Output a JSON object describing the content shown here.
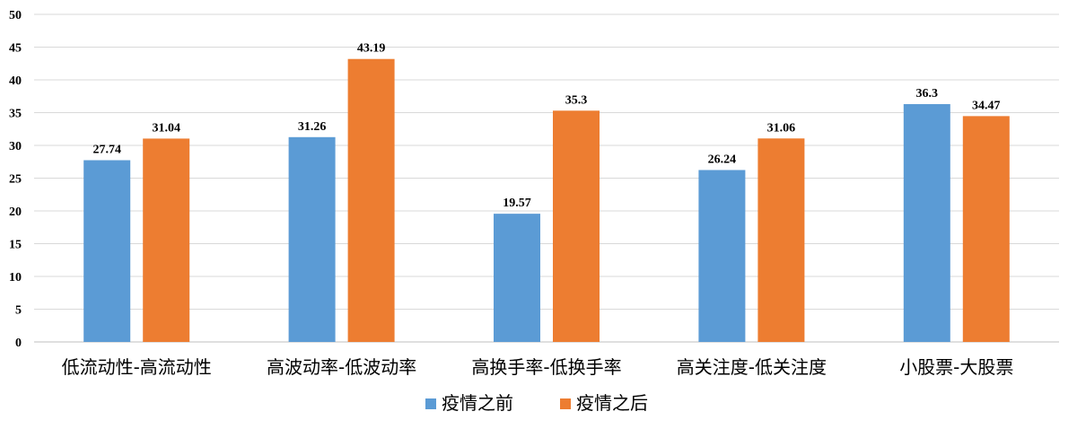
{
  "chart_data": {
    "type": "bar",
    "categories": [
      "低流动性-高流动性",
      "高波动率-低波动率",
      "高换手率-低换手率",
      "高关注度-低关注度",
      "小股票-大股票"
    ],
    "series": [
      {
        "name": "疫情之前",
        "values": [
          27.74,
          31.26,
          19.57,
          26.24,
          36.3
        ],
        "color": "#5b9bd5"
      },
      {
        "name": "疫情之后",
        "values": [
          31.04,
          43.19,
          35.3,
          31.06,
          34.47
        ],
        "color": "#ed7d31"
      }
    ],
    "ylim": [
      0,
      50
    ],
    "yticks": [
      0,
      5,
      10,
      15,
      20,
      25,
      30,
      35,
      40,
      45,
      50
    ],
    "grid": true,
    "legend_position": "bottom"
  }
}
